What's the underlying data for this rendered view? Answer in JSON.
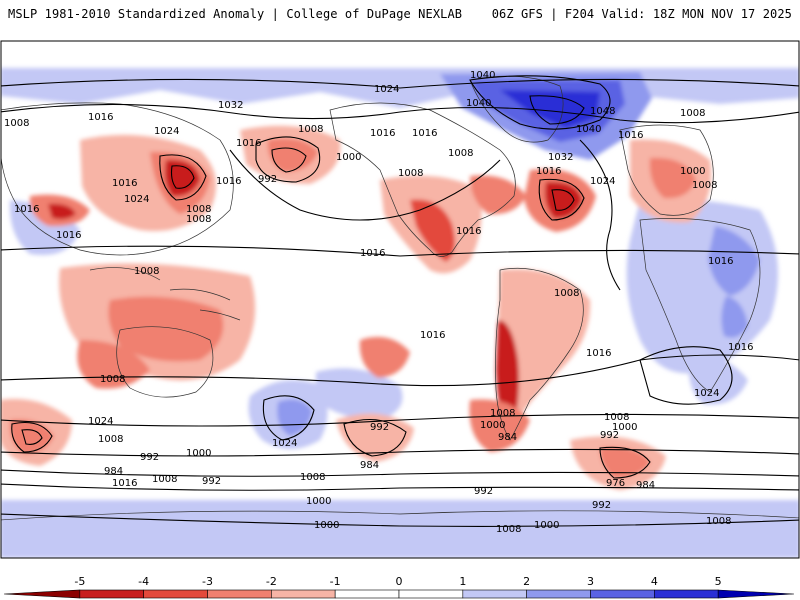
{
  "header": {
    "left": "MSLP 1981-2010 Standardized Anomaly | College of DuPage NEXLAB",
    "right": "06Z GFS | F204 Valid: 18Z MON NOV 17 2025"
  },
  "colorbar": {
    "ticks": [
      "-5",
      "-4",
      "-3",
      "-2",
      "-1",
      "0",
      "1",
      "2",
      "3",
      "4",
      "5"
    ],
    "colors": [
      "#8b0000",
      "#c81e1e",
      "#e34a3c",
      "#f08070",
      "#f7b4a6",
      "#ffffff",
      "#ffffff",
      "#c3c8f5",
      "#8f99ee",
      "#5a62e3",
      "#2a2fd6",
      "#0000b0"
    ]
  },
  "isobars": [
    {
      "label": "1040"
    },
    {
      "label": "1040"
    },
    {
      "label": "1048"
    },
    {
      "label": "1040"
    },
    {
      "label": "1032"
    },
    {
      "label": "1024"
    },
    {
      "label": "1032"
    },
    {
      "label": "1016"
    },
    {
      "label": "1008"
    },
    {
      "label": "1024"
    },
    {
      "label": "1016"
    },
    {
      "label": "1008"
    },
    {
      "label": "1016"
    },
    {
      "label": "1016"
    },
    {
      "label": "1000"
    },
    {
      "label": "992"
    },
    {
      "label": "1016"
    },
    {
      "label": "1008"
    },
    {
      "label": "1016"
    },
    {
      "label": "1024"
    },
    {
      "label": "1016"
    },
    {
      "label": "1008"
    },
    {
      "label": "1000"
    },
    {
      "label": "1008"
    },
    {
      "label": "1024"
    },
    {
      "label": "1016"
    },
    {
      "label": "1008"
    },
    {
      "label": "1016"
    },
    {
      "label": "1016"
    },
    {
      "label": "1008"
    },
    {
      "label": "1008"
    },
    {
      "label": "1016"
    },
    {
      "label": "1016"
    },
    {
      "label": "1008"
    },
    {
      "label": "1016"
    },
    {
      "label": "1016"
    },
    {
      "label": "1016"
    },
    {
      "label": "1024"
    },
    {
      "label": "1016"
    },
    {
      "label": "1024"
    },
    {
      "label": "1008"
    },
    {
      "label": "1024"
    },
    {
      "label": "1008"
    },
    {
      "label": "992"
    },
    {
      "label": "1000"
    },
    {
      "label": "984"
    },
    {
      "label": "1016"
    },
    {
      "label": "1008"
    },
    {
      "label": "992"
    },
    {
      "label": "992"
    },
    {
      "label": "984"
    },
    {
      "label": "1000"
    },
    {
      "label": "1008"
    },
    {
      "label": "1000"
    },
    {
      "label": "1008"
    },
    {
      "label": "1000"
    },
    {
      "label": "992"
    },
    {
      "label": "984"
    },
    {
      "label": "1008"
    },
    {
      "label": "1000"
    },
    {
      "label": "992"
    },
    {
      "label": "1008"
    },
    {
      "label": "976"
    },
    {
      "label": "984"
    },
    {
      "label": "992"
    },
    {
      "label": "1000"
    },
    {
      "label": "1008"
    },
    {
      "label": "1008"
    }
  ]
}
